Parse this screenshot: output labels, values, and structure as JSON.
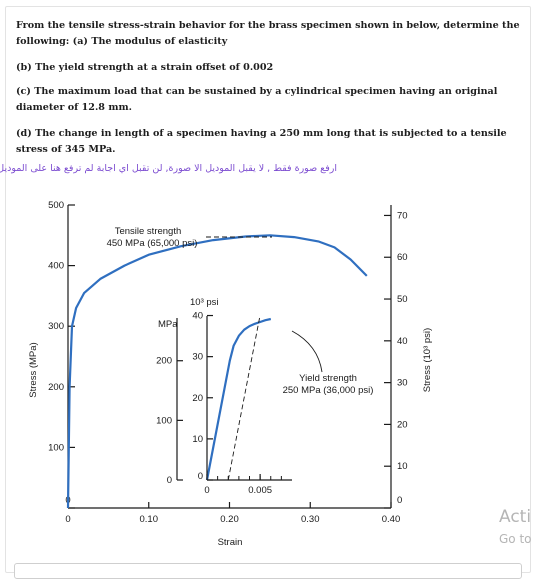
{
  "question": {
    "intro": "From the tensile stress-strain behavior for the brass specimen shown in below, determine the following: (a) The modulus of elasticity",
    "part_b": "(b) The yield strength at a strain offset of 0.002",
    "part_c": "(c) The maximum load that can be sustained by a cylindrical specimen having an original diameter of 12.8 mm.",
    "part_d": "(d) The change in length of a specimen having a 250 mm long that is subjected to a tensile stress of 345 MPa.",
    "arabic_note": "ارفع صورة فقط , لا يقبل الموديل الا صورة, لن تقبل اي اجابة لم ترفع هنا على الموديل"
  },
  "chart_data": [
    {
      "type": "line",
      "title": "",
      "xlabel": "Strain",
      "ylabel": "Stress (MPa)",
      "y2label": "Stress (10³ psi)",
      "xlim": [
        0,
        0.4
      ],
      "ylim": [
        0,
        500
      ],
      "y2lim": [
        0,
        72.5
      ],
      "x_ticks": [
        "0",
        "0.10",
        "0.20",
        "0.30",
        "0.40"
      ],
      "y_ticks": [
        "0",
        "100",
        "200",
        "300",
        "400",
        "500"
      ],
      "y2_ticks": [
        "0",
        "10",
        "20",
        "30",
        "40",
        "50",
        "60",
        "70"
      ],
      "series": [
        {
          "x": [
            0,
            0.002,
            0.005,
            0.01,
            0.02,
            0.04,
            0.07,
            0.1,
            0.14,
            0.18,
            0.22,
            0.25,
            0.28,
            0.31,
            0.33,
            0.35,
            0.37
          ],
          "y": [
            0,
            200,
            300,
            330,
            355,
            378,
            400,
            418,
            432,
            442,
            448,
            450,
            447,
            440,
            430,
            410,
            383
          ]
        }
      ],
      "color": "#2f6fc0",
      "annotations": [
        "Tensile strength",
        "450 MPa (65,000 psi)"
      ]
    },
    {
      "type": "line",
      "title": "",
      "xlabel": "",
      "xlim": [
        0,
        0.008
      ],
      "ylim": [
        0,
        275
      ],
      "y_unit_label": "MPa",
      "y2_unit_label": "10³ psi",
      "x_ticks": [
        "0",
        "0.005"
      ],
      "y_ticks": [
        "0",
        "100",
        "200"
      ],
      "y2_ticks": [
        "0",
        "10",
        "20",
        "30",
        "40"
      ],
      "series": [
        {
          "x": [
            0,
            0.00215,
            0.0025,
            0.003,
            0.0035,
            0.004,
            0.0045,
            0.005,
            0.0055,
            0.006
          ],
          "y": [
            0,
            200,
            225,
            242,
            252,
            258,
            262,
            265,
            268,
            270
          ]
        }
      ],
      "offset_line": {
        "x": [
          0.002,
          0.00495
        ],
        "y": [
          0,
          272
        ]
      },
      "color": "#2f6fc0",
      "annotations": [
        "Yield strength",
        "250 MPa (36,000 psi)"
      ]
    }
  ],
  "watermark": {
    "line1": "Acti",
    "line2": "Go to"
  }
}
